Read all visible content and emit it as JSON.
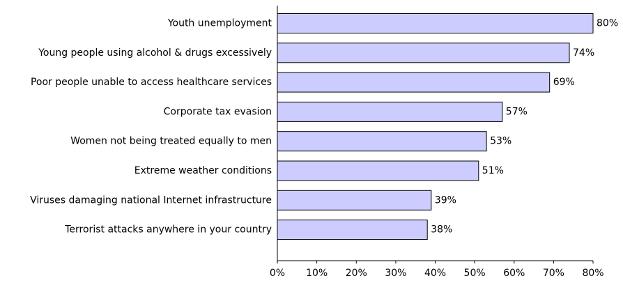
{
  "chart_data": {
    "type": "bar",
    "orientation": "horizontal",
    "title": "",
    "xlabel": "",
    "ylabel": "",
    "categories": [
      "Youth unemployment",
      "Young people using alcohol & drugs excessively",
      "Poor people unable to access healthcare services",
      "Corporate tax evasion",
      "Women not being treated equally to men",
      "Extreme weather conditions",
      "Viruses damaging national Internet infrastructure",
      "Terrorist attacks anywhere in your country"
    ],
    "values": [
      80,
      74,
      69,
      57,
      53,
      51,
      39,
      38
    ],
    "data_labels": [
      "80%",
      "74%",
      "69%",
      "57%",
      "53%",
      "51%",
      "39%",
      "38%"
    ],
    "xlim": [
      0,
      80
    ],
    "xticks": [
      0,
      10,
      20,
      30,
      40,
      50,
      60,
      70,
      80
    ],
    "xtick_labels": [
      "0%",
      "10%",
      "20%",
      "30%",
      "40%",
      "50%",
      "60%",
      "70%",
      "80%"
    ],
    "grid": false,
    "legend": "none",
    "bar_color": "#ccccff",
    "bar_edge_color": "#000000"
  }
}
